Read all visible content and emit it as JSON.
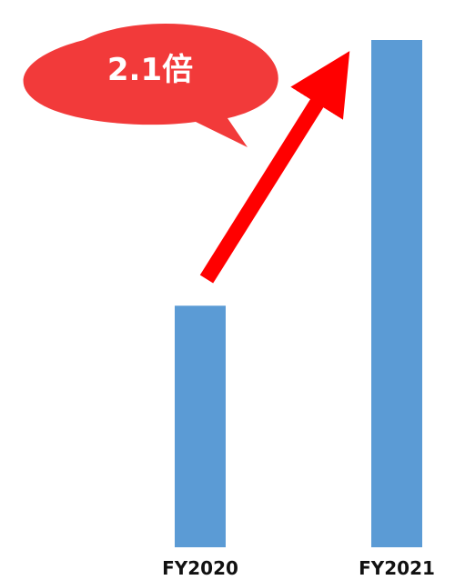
{
  "chart_data": {
    "type": "bar",
    "categories": [
      "FY2020",
      "FY2021"
    ],
    "values": [
      1,
      2.1
    ],
    "ylim": [
      0,
      2.1
    ],
    "grid": false,
    "annotations": [
      {
        "text": "2.1倍",
        "shape": "speech-bubble",
        "color": "#f23a3a"
      },
      {
        "shape": "arrow",
        "color": "#ff0000",
        "from": "FY2020",
        "to": "FY2021"
      }
    ],
    "bar_color": "#5b9bd5"
  }
}
